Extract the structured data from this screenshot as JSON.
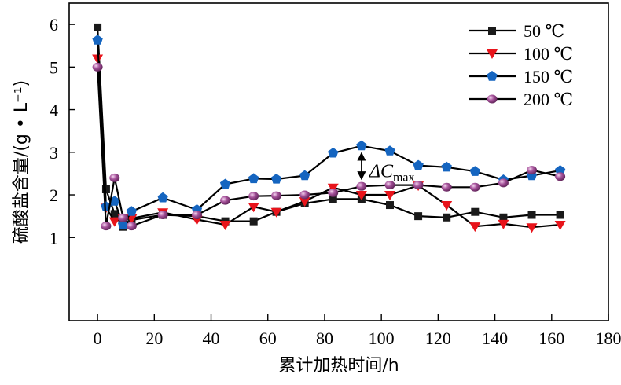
{
  "chart_data": {
    "type": "line",
    "title": "",
    "xlabel": "累计加热时间/h",
    "ylabel": "硫酸盐含量/(g • L⁻¹)",
    "xlim": [
      -10,
      180
    ],
    "ylim": [
      -0.95,
      6.5
    ],
    "x_ticks": [
      "0",
      "20",
      "40",
      "60",
      "80",
      "100",
      "120",
      "140",
      "160",
      "180"
    ],
    "x_tick_values": [
      0,
      20,
      40,
      60,
      80,
      100,
      120,
      140,
      160,
      180
    ],
    "y_ticks": [
      "1",
      "2",
      "3",
      "4",
      "5",
      "6"
    ],
    "y_tick_values": [
      1,
      2,
      3,
      4,
      5,
      6
    ],
    "grid": false,
    "legend_position": "top-right",
    "series": [
      {
        "name": "50 ℃",
        "marker": "square",
        "color": "#1a1a1a",
        "x": [
          0,
          3,
          6,
          9,
          12,
          23,
          35,
          45,
          55,
          63,
          73,
          83,
          93,
          103,
          113,
          123,
          133,
          143,
          153,
          163
        ],
        "y": [
          5.93,
          2.13,
          1.55,
          1.25,
          1.41,
          1.53,
          1.5,
          1.38,
          1.38,
          1.6,
          1.8,
          1.9,
          1.9,
          1.76,
          1.5,
          1.47,
          1.6,
          1.47,
          1.53,
          1.53
        ]
      },
      {
        "name": "100 ℃",
        "marker": "triangle-down",
        "color": "#e8141b",
        "x": [
          0,
          3,
          6,
          9,
          12,
          23,
          35,
          45,
          55,
          63,
          73,
          83,
          93,
          103,
          113,
          123,
          133,
          143,
          153,
          163
        ],
        "y": [
          5.2,
          1.7,
          1.38,
          1.45,
          1.45,
          1.59,
          1.42,
          1.3,
          1.72,
          1.6,
          1.85,
          2.17,
          2.0,
          2.0,
          2.22,
          1.76,
          1.26,
          1.32,
          1.24,
          1.3
        ]
      },
      {
        "name": "150 ℃",
        "marker": "pentagon",
        "color": "#1565c0",
        "x": [
          0,
          3,
          6,
          9,
          12,
          23,
          35,
          45,
          55,
          63,
          73,
          83,
          93,
          103,
          113,
          123,
          133,
          143,
          153,
          163
        ],
        "y": [
          5.63,
          1.72,
          1.85,
          1.3,
          1.61,
          1.93,
          1.65,
          2.25,
          2.38,
          2.37,
          2.45,
          2.98,
          3.15,
          3.03,
          2.69,
          2.65,
          2.55,
          2.35,
          2.45,
          2.57
        ]
      },
      {
        "name": "200 ℃",
        "marker": "sphere",
        "color": "#a5529a",
        "x": [
          0,
          3,
          6,
          9,
          12,
          23,
          35,
          45,
          55,
          63,
          73,
          83,
          93,
          103,
          113,
          123,
          133,
          143,
          153,
          163
        ],
        "y": [
          5.0,
          1.27,
          2.4,
          1.46,
          1.27,
          1.53,
          1.53,
          1.87,
          1.97,
          1.98,
          2.0,
          2.05,
          2.2,
          2.23,
          2.23,
          2.18,
          2.18,
          2.28,
          2.58,
          2.43
        ]
      }
    ],
    "annotations": [
      {
        "text_main": "ΔC",
        "text_sub": "max",
        "x": 93,
        "y_from": 2.2,
        "y_to": 3.15
      }
    ]
  }
}
